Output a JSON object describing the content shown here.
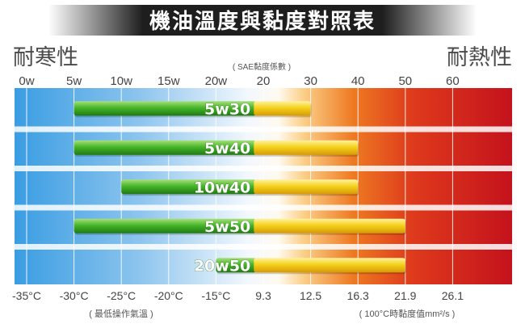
{
  "chart_data": {
    "type": "bar",
    "title": "機油溫度與黏度對照表",
    "left_label": "耐寒性",
    "right_label": "耐熱性",
    "top_axis_caption": "( SAE黏度係數 )",
    "top_ticks": [
      "0w",
      "5w",
      "10w",
      "15w",
      "20w",
      "20",
      "30",
      "40",
      "50",
      "60"
    ],
    "bottom_ticks": [
      "-35°C",
      "-30°C",
      "-25°C",
      "-20°C",
      "-15°C",
      "9.3",
      "12.5",
      "16.3",
      "21.9",
      "26.1"
    ],
    "bottom_left_caption": "( 最低操作氣溫 )",
    "bottom_right_caption": "( 100°C時黏度值mm²/s )",
    "axis_index_range": [
      0,
      9
    ],
    "split_index": 4.8,
    "series": [
      {
        "label": "5w30",
        "start_index": 1,
        "end_index": 6
      },
      {
        "label": "5w40",
        "start_index": 1,
        "end_index": 7
      },
      {
        "label": "10w40",
        "start_index": 2,
        "end_index": 7
      },
      {
        "label": "5w50",
        "start_index": 1,
        "end_index": 8
      },
      {
        "label": "20w50",
        "start_index": 4,
        "end_index": 8
      }
    ],
    "grid": true,
    "colors": {
      "cold": "#3aa0e4",
      "hot": "#c8161e",
      "green_bar": "#3aa820",
      "yellow_bar": "#f2cc10",
      "title_band": "#1a1a1a"
    }
  }
}
